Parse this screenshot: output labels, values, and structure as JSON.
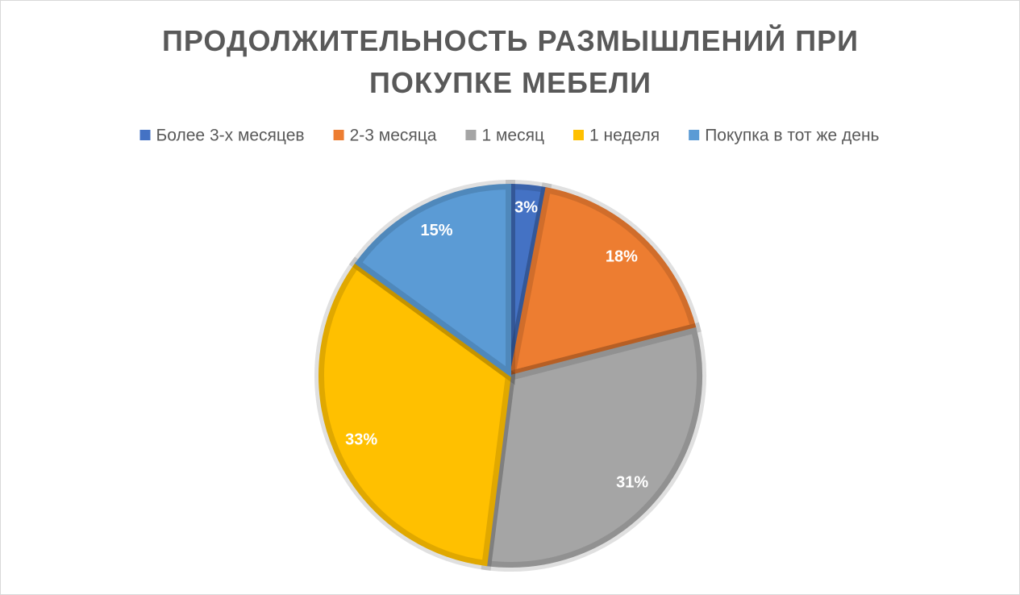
{
  "chart_data": {
    "type": "pie",
    "title": "ПРОДОЛЖИТЕЛЬНОСТЬ РАЗМЫШЛЕНИЙ ПРИ ПОКУПКЕ МЕБЕЛИ",
    "categories": [
      "Более 3-х месяцев",
      "2-3 месяца",
      "1 месяц",
      "1 неделя",
      "Покупка в тот же день"
    ],
    "values": [
      3,
      18,
      31,
      33,
      15
    ],
    "value_labels": [
      "3%",
      "18%",
      "31%",
      "33%",
      "15%"
    ],
    "colors": [
      "#4472c4",
      "#ed7d31",
      "#a5a5a5",
      "#ffc000",
      "#5b9bd5"
    ],
    "legend": "top"
  }
}
